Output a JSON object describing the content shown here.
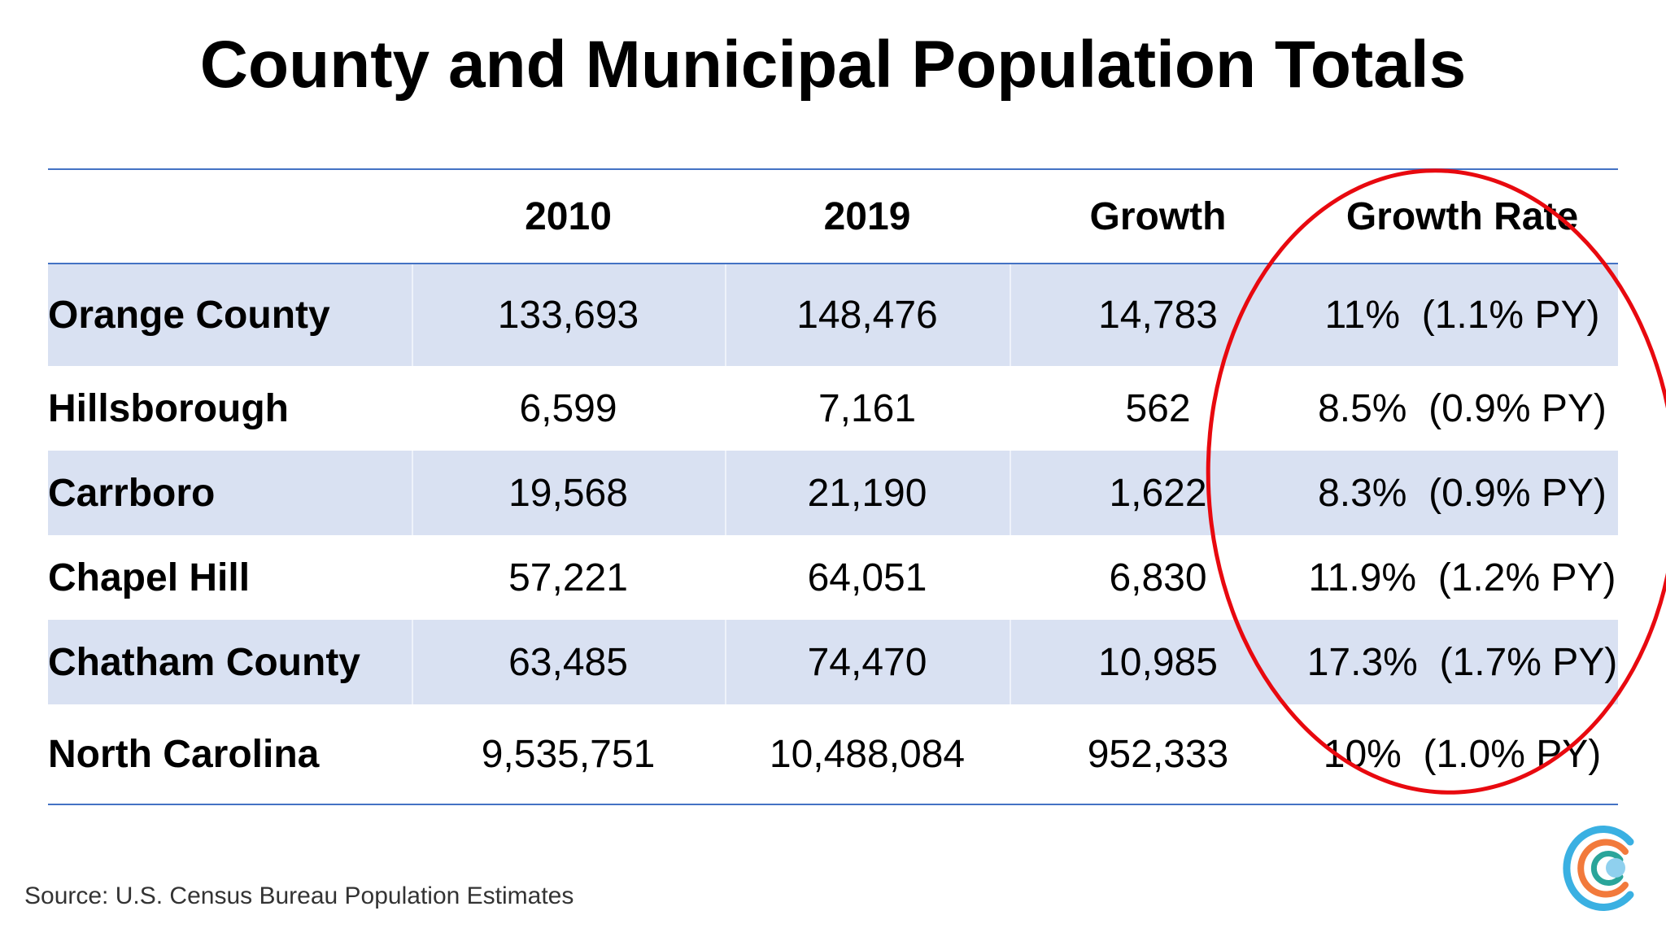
{
  "title": "County and Municipal Population Totals",
  "table": {
    "headers": [
      "",
      "2010",
      "2019",
      "Growth",
      "Growth Rate"
    ],
    "rows": [
      {
        "name": "Orange County",
        "y2010": "133,693",
        "y2019": "148,476",
        "growth": "14,783",
        "rate": "11%  (1.1% PY)"
      },
      {
        "name": "Hillsborough",
        "y2010": "6,599",
        "y2019": "7,161",
        "growth": "562",
        "rate": "8.5%  (0.9% PY)"
      },
      {
        "name": "Carrboro",
        "y2010": "19,568",
        "y2019": "21,190",
        "growth": "1,622",
        "rate": "8.3%  (0.9% PY)"
      },
      {
        "name": "Chapel Hill",
        "y2010": "57,221",
        "y2019": "64,051",
        "growth": "6,830",
        "rate": "11.9%  (1.2% PY)"
      },
      {
        "name": "Chatham County",
        "y2010": "63,485",
        "y2019": "74,470",
        "growth": "10,985",
        "rate": "17.3%  (1.7% PY)"
      },
      {
        "name": "North Carolina",
        "y2010": "9,535,751",
        "y2019": "10,488,084",
        "growth": "952,333",
        "rate": "10%  (1.0% PY)"
      }
    ]
  },
  "source": "Source: U.S. Census Bureau Population Estimates",
  "colors": {
    "rule": "#4472c4",
    "band": "#d9e1f2",
    "highlight_circle": "#e8090f",
    "logo_outer": "#3ab0e2",
    "logo_mid": "#f27a3c",
    "logo_inner": "#2aa59a",
    "logo_dot": "#8fd0ee"
  }
}
